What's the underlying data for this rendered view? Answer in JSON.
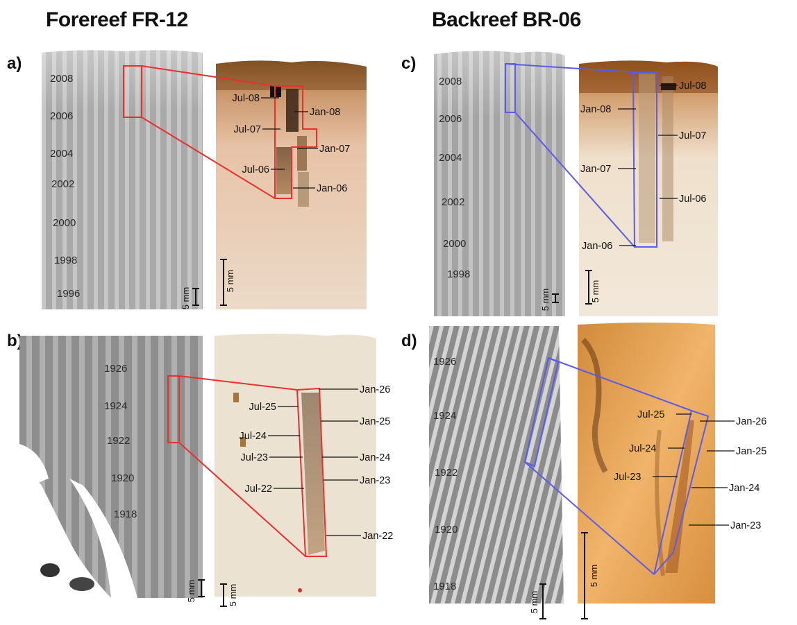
{
  "titles": {
    "forereef": "Forereef FR-12",
    "backreef": "Backreef BR-06"
  },
  "panels": {
    "a": {
      "letter": "a)",
      "years": [
        "2008",
        "2006",
        "2004",
        "2002",
        "2000",
        "1998",
        "1996"
      ],
      "months_left": [
        "Jul-08",
        "Jul-07",
        "Jul-06"
      ],
      "months_right": [
        "Jan-08",
        "Jan-07",
        "Jan-06"
      ],
      "scalebar_xray": "5 mm",
      "scalebar_photo": "5 mm"
    },
    "b": {
      "letter": "b)",
      "years": [
        "1926",
        "1924",
        "1922",
        "1920",
        "1918"
      ],
      "months_left": [
        "Jul-25",
        "Jul-24",
        "Jul-23",
        "Jul-22"
      ],
      "months_right": [
        "Jan-26",
        "Jan-25",
        "Jan-24",
        "Jan-23",
        "Jan-22"
      ],
      "scalebar_xray": "5 mm",
      "scalebar_photo": "5 mm"
    },
    "c": {
      "letter": "c)",
      "years": [
        "2008",
        "2006",
        "2004",
        "2002",
        "2000",
        "1998"
      ],
      "months_left": [
        "Jan-08",
        "Jan-07",
        "Jan-06"
      ],
      "months_right": [
        "Jul-08",
        "Jul-07",
        "Jul-06"
      ],
      "scalebar_xray": "5 mm",
      "scalebar_photo": "5 mm"
    },
    "d": {
      "letter": "d)",
      "years": [
        "1926",
        "1924",
        "1922",
        "1920",
        "1918"
      ],
      "months_left": [
        "Jul-25",
        "Jul-24",
        "Jul-23"
      ],
      "months_right": [
        "Jan-26",
        "Jan-25",
        "Jan-24",
        "Jan-23"
      ],
      "scalebar_xray": "5 mm",
      "scalebar_photo": "5 mm"
    }
  },
  "colors": {
    "forereef_outline": "#e8312f",
    "backreef_outline": "#5b5bea"
  }
}
